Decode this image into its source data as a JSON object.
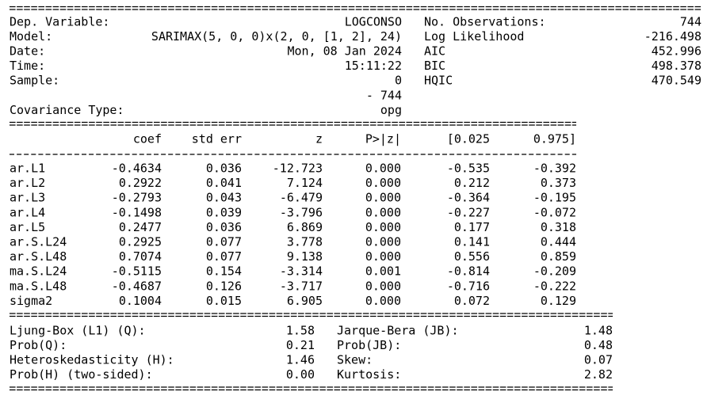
{
  "summary": {
    "header": {
      "left": [
        {
          "label": "Dep. Variable:",
          "value": [
            "LOGCONSO"
          ]
        },
        {
          "label": "Model:",
          "value": [
            "SARIMAX(5, 0, 0)x(2, 0, [1, 2], 24)"
          ]
        },
        {
          "label": "Date:",
          "value": [
            "Mon, 08 Jan 2024"
          ]
        },
        {
          "label": "Time:",
          "value": [
            "15:11:22"
          ]
        },
        {
          "label": "Sample:",
          "value": [
            "0",
            "- 744"
          ]
        },
        {
          "label": "Covariance Type:",
          "value": [
            "opg"
          ]
        }
      ],
      "right": [
        {
          "label": "No. Observations:",
          "value": "744"
        },
        {
          "label": "Log Likelihood",
          "value": "-216.498"
        },
        {
          "label": "AIC",
          "value": "452.996"
        },
        {
          "label": "BIC",
          "value": "498.378"
        },
        {
          "label": "HQIC",
          "value": "470.549"
        }
      ]
    },
    "coef_table": {
      "columns": [
        "coef",
        "std err",
        "z",
        "P>|z|",
        "[0.025",
        "0.975]"
      ],
      "rows": [
        [
          "ar.L1",
          "-0.4634",
          "0.036",
          "-12.723",
          "0.000",
          "-0.535",
          "-0.392"
        ],
        [
          "ar.L2",
          "0.2922",
          "0.041",
          "7.124",
          "0.000",
          "0.212",
          "0.373"
        ],
        [
          "ar.L3",
          "-0.2793",
          "0.043",
          "-6.479",
          "0.000",
          "-0.364",
          "-0.195"
        ],
        [
          "ar.L4",
          "-0.1498",
          "0.039",
          "-3.796",
          "0.000",
          "-0.227",
          "-0.072"
        ],
        [
          "ar.L5",
          "0.2477",
          "0.036",
          "6.869",
          "0.000",
          "0.177",
          "0.318"
        ],
        [
          "ar.S.L24",
          "0.2925",
          "0.077",
          "3.778",
          "0.000",
          "0.141",
          "0.444"
        ],
        [
          "ar.S.L48",
          "0.7074",
          "0.077",
          "9.138",
          "0.000",
          "0.556",
          "0.859"
        ],
        [
          "ma.S.L24",
          "-0.5115",
          "0.154",
          "-3.314",
          "0.001",
          "-0.814",
          "-0.209"
        ],
        [
          "ma.S.L48",
          "-0.4687",
          "0.126",
          "-3.717",
          "0.000",
          "-0.716",
          "-0.222"
        ],
        [
          "sigma2",
          "0.1004",
          "0.015",
          "6.905",
          "0.000",
          "0.072",
          "0.129"
        ]
      ]
    },
    "diagnostics": {
      "left": [
        {
          "label": "Ljung-Box (L1) (Q):",
          "value": "1.58"
        },
        {
          "label": "Prob(Q):",
          "value": "0.21"
        },
        {
          "label": "Heteroskedasticity (H):",
          "value": "1.46"
        },
        {
          "label": "Prob(H) (two-sided):",
          "value": "0.00"
        }
      ],
      "right": [
        {
          "label": "Jarque-Bera (JB):",
          "value": "1.48"
        },
        {
          "label": "Prob(JB):",
          "value": "0.48"
        },
        {
          "label": "Skew:",
          "value": "0.07"
        },
        {
          "label": "Kurtosis:",
          "value": "2.82"
        }
      ]
    }
  }
}
